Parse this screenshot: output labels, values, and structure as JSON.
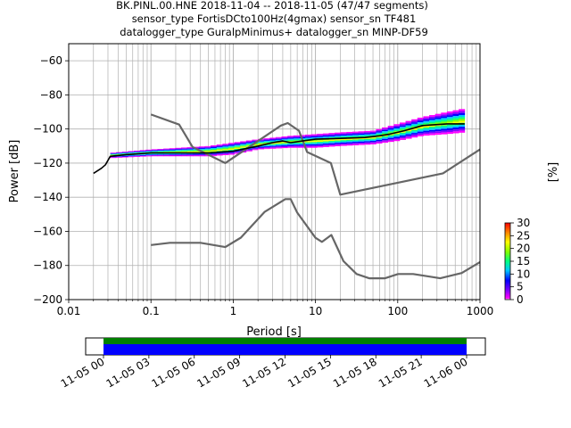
{
  "chart_data": [
    {
      "type": "heatmap",
      "title": [
        "BK.PINL.00.HNE   2018-11-04 -- 2018-11-05  (47/47 segments)",
        "sensor_type FortisDCto100Hz(4gmax) sensor_sn TF481",
        "datalogger_type GuralpMinimus+ datalogger_sn MINP-DF59"
      ],
      "xlabel": "Period [s]",
      "ylabel": "Power [dB]",
      "xscale": "log",
      "xlim": [
        0.01,
        1000
      ],
      "ylim": [
        -200,
        -50
      ],
      "x_ticks": [
        {
          "value": 0.01,
          "label": "0.01"
        },
        {
          "value": 0.1,
          "label": "0.1"
        },
        {
          "value": 1,
          "label": "1"
        },
        {
          "value": 10,
          "label": "10"
        },
        {
          "value": 100,
          "label": "100"
        },
        {
          "value": 1000,
          "label": "1000"
        }
      ],
      "y_ticks": [
        {
          "value": -60,
          "label": "−60"
        },
        {
          "value": -80,
          "label": "−80"
        },
        {
          "value": -100,
          "label": "−100"
        },
        {
          "value": -120,
          "label": "−120"
        },
        {
          "value": -140,
          "label": "−140"
        },
        {
          "value": -160,
          "label": "−160"
        },
        {
          "value": -180,
          "label": "−180"
        },
        {
          "value": -200,
          "label": "−200"
        }
      ],
      "grid": true,
      "colorbar": {
        "label": "[%]",
        "min": 0,
        "max": 30,
        "ticks": [
          {
            "value": 0,
            "label": "0"
          },
          {
            "value": 5,
            "label": "5"
          },
          {
            "value": 10,
            "label": "10"
          },
          {
            "value": 15,
            "label": "15"
          },
          {
            "value": 20,
            "label": "20"
          },
          {
            "value": 25,
            "label": "25"
          },
          {
            "value": 30,
            "label": "30"
          }
        ]
      },
      "series": [
        {
          "role": "NHNM",
          "color": "#666666",
          "x": [
            0.1,
            0.22,
            0.32,
            0.8,
            3.8,
            4.6,
            6.3,
            7.9,
            15.4,
            20,
            354.8,
            1000
          ],
          "y": [
            -91.5,
            -97.4,
            -110.5,
            -120,
            -98,
            -96.5,
            -101,
            -113.5,
            -120,
            -138.5,
            -126,
            -112
          ]
        },
        {
          "role": "NLNM",
          "color": "#666666",
          "x": [
            0.1,
            0.17,
            0.4,
            0.8,
            1.24,
            2.4,
            4.3,
            5,
            6,
            10,
            12,
            15.6,
            21.9,
            31.6,
            45,
            70,
            101,
            154,
            328,
            600,
            1000
          ],
          "y": [
            -168,
            -166.7,
            -166.7,
            -169.2,
            -163.7,
            -148.6,
            -141.1,
            -141.1,
            -149,
            -163.8,
            -166.2,
            -162.1,
            -177.5,
            -185,
            -187.5,
            -187.5,
            -185,
            -185,
            -187.5,
            -184.4,
            -178
          ]
        },
        {
          "role": "mean",
          "color": "#000000",
          "x": [
            0.02,
            0.025,
            0.028,
            0.032,
            0.05,
            0.1,
            0.2,
            0.5,
            1,
            2,
            3,
            4,
            5,
            7,
            10,
            20,
            40,
            60,
            80,
            120,
            200,
            400,
            650
          ],
          "y": [
            -126,
            -123,
            -121,
            -116,
            -115,
            -114,
            -114,
            -114,
            -113,
            -110,
            -108,
            -107,
            -108,
            -107,
            -106,
            -105.5,
            -105,
            -104,
            -103,
            -101,
            -98,
            -97,
            -97
          ]
        }
      ],
      "distribution_band": {
        "x": [
          0.032,
          0.1,
          0.5,
          1,
          2,
          5,
          10,
          20,
          50,
          100,
          200,
          400,
          650
        ],
        "y_low": [
          -117,
          -116,
          -116,
          -115,
          -112,
          -111,
          -111,
          -110,
          -109,
          -107,
          -104,
          -103,
          -102
        ],
        "y_high": [
          -114,
          -112,
          -110,
          -108,
          -106,
          -104,
          -103,
          -102,
          -101,
          -97,
          -93,
          -90,
          -88
        ]
      }
    },
    {
      "type": "timeline",
      "x_tick_labels": [
        "11-05 00",
        "11-05 03",
        "11-05 06",
        "11-05 09",
        "11-05 12",
        "11-05 15",
        "11-05 18",
        "11-05 21",
        "11-06 00"
      ],
      "coverage_colors": [
        "#008000",
        "#0000ff"
      ]
    }
  ]
}
